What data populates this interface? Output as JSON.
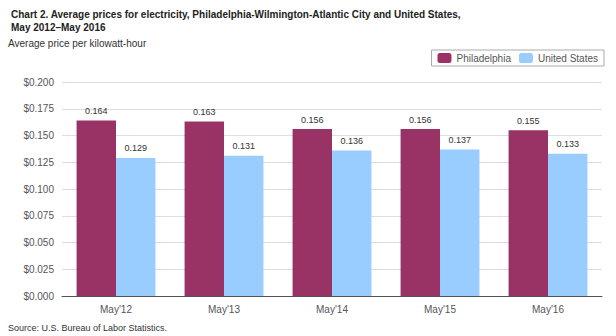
{
  "chart_data": {
    "type": "bar",
    "title": "Chart 2. Average prices for electricity, Philadelphia-Wilmington-Atlantic City and United States,",
    "subtitle": "May 2012–May 2016",
    "y_label": "Average price per kilowatt-hour",
    "annotations": [
      "Source: U.S. Bureau of Labor Statistics."
    ],
    "categories": [
      "May'12",
      "May'13",
      "May'14",
      "May'15",
      "May'16"
    ],
    "series": [
      {
        "name": "Philadelphia",
        "color": "#993366",
        "values": [
          0.164,
          0.163,
          0.156,
          0.156,
          0.155
        ]
      },
      {
        "name": "United States",
        "color": "#99ccff",
        "values": [
          0.129,
          0.131,
          0.136,
          0.137,
          0.133
        ]
      }
    ],
    "ylim": [
      0,
      0.2
    ],
    "yticks": [
      {
        "value": 0.0,
        "label": "$0.000"
      },
      {
        "value": 0.025,
        "label": "$0.025"
      },
      {
        "value": 0.05,
        "label": "$0.050"
      },
      {
        "value": 0.075,
        "label": "$0.075"
      },
      {
        "value": 0.1,
        "label": "$0.100"
      },
      {
        "value": 0.125,
        "label": "$0.125"
      },
      {
        "value": 0.15,
        "label": "$0.150"
      },
      {
        "value": 0.175,
        "label": "$0.175"
      },
      {
        "value": 0.2,
        "label": "$0.200"
      }
    ],
    "grid": true,
    "legend": "upper right",
    "data_labels": true
  }
}
